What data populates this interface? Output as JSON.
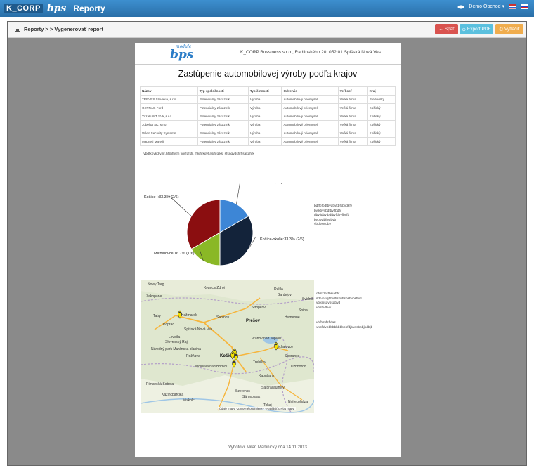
{
  "app": {
    "logo_text": "K_CORP",
    "module_logo": "bps",
    "title": "Reporty"
  },
  "user": {
    "name": "Demo Obchod",
    "caret": "▾"
  },
  "breadcrumb": {
    "text": "Reporty > > Vygenerovať report"
  },
  "buttons": {
    "back": "Späť",
    "pdf": "Export PDF",
    "print": "Vytlačiť"
  },
  "report": {
    "logo_module": "module",
    "logo_text": "bps",
    "address": "K_CORP Bussiness s.r.o., Radlinského 20, 052 01 Spišská Nová Ves",
    "title": "Zastúpenie automobilovej výroby podľa krajov",
    "table": {
      "headers": [
        "Názov",
        "Typ spoločnosti",
        "Typ činnosti",
        "Odvetvie",
        "Veľkosť",
        "Kraj"
      ],
      "rows": [
        [
          "TREVES Slovakia, s.r.o.",
          "Potenciálny zákazník",
          "Výroba",
          "Automobilový priemysel",
          "Veľká firma",
          "Prešovský"
        ],
        [
          "GETRAG Ford",
          "Potenciálny zákazník",
          "Výroba",
          "Automobilový priemysel",
          "Veľká firma",
          "Košický"
        ],
        [
          "Yazaki WT SVK,s.r.o.",
          "Potenciálny zákazník",
          "Výroba",
          "Automobilový priemysel",
          "Veľká firma",
          "Košický"
        ],
        [
          "Jobelsa SK, s.r.o.",
          "Potenciálny zákazník",
          "Výroba",
          "Automobilový priemysel",
          "Veľká firma",
          "Košický"
        ],
        [
          "Valeo Security Systems",
          "Potenciálny zákazník",
          "Výroba",
          "Automobilový priemysel",
          "Veľká firma",
          "Košický"
        ],
        [
          "Magneti Marelli",
          "Potenciálny zákazník",
          "Výroba",
          "Automobilový priemysel",
          "Veľká firma",
          "Košický"
        ]
      ]
    },
    "note_table": "fvbdfkbvkdfv,nf,hfshfhsfh fjgvfdfsfi, fhkjhfkgvtiasihfgjks, sfsngvdshfhsakdhfk",
    "pie_note": "bdffbfbdfbvdbvkbfkbvdkfv\nbvjkbvjfbdfbvjfbdfv\ndbvljdbvfbdfbvfdbvfbvfb\nbvbsvjbjbvjbvb\nvbdbsvjdbv",
    "map_note1": "dfdcdbsfbsiabfv\nsdfvbsdjbfvdbsbvbsbsbvbsfbvl\nvbkjbsdvbsabvd\nvbsbvfbvk",
    "map_note2": "vbfbsvfsfvfas\nvnsfsfvbbbbbbbbbbbfdjbvasbbbjbdbjb",
    "map": {
      "labels": [
        "Nowy Targ",
        "Krynica-Zdrój",
        "Dukla",
        "Zakopane",
        "Bardejov",
        "Svidník",
        "Tatry",
        "Kežmarok",
        "Sabinov",
        "Poprad",
        "Spišská Nová Ves",
        "Prešov",
        "Stropkov",
        "Humenné",
        "Snina",
        "Levoča",
        "Vranov nad Topľou",
        "Michalovce",
        "Rožňava",
        "Košice",
        "Moldava nad Bodvou",
        "Trebišov",
        "Sobrance",
        "Uzhhorod",
        "Rimavská Sobota",
        "Slovenský Raj",
        "Národný park Muránska planina",
        "Miskolc",
        "Kapušany",
        "Satoraljaujhely",
        "Sárospatak",
        "Kazincbarcika",
        "Tokaj",
        "Nyíregyháza",
        "Szerencs"
      ],
      "footer": [
        "Údaje mapy",
        "Zmluvné podmienky",
        "Nahlásiť chybu mapy"
      ]
    },
    "footer": "Vyhotovil Milan Martinický dňa 14.11.2013"
  },
  "chart_data": {
    "type": "pie",
    "slices": [
      {
        "label": "Kežmarok:16.7% (1/6)",
        "value": 1,
        "color": "#3d86d6"
      },
      {
        "label": "Košice-okolie:33.3% (2/6)",
        "value": 2,
        "color": "#13233a"
      },
      {
        "label": "Michalovce:16.7% (1/6)",
        "value": 1,
        "color": "#8ab826"
      },
      {
        "label": "Košice I:33.3% (2/6)",
        "value": 2,
        "color": "#8b0e10"
      }
    ]
  }
}
